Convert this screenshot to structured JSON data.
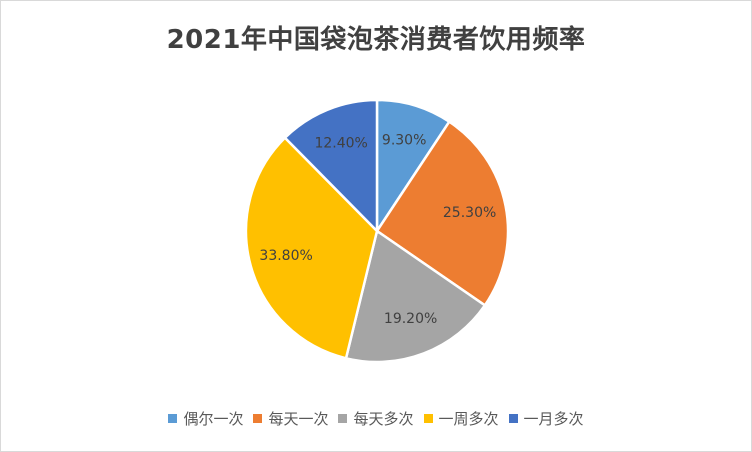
{
  "chart_data": {
    "type": "pie",
    "title": "2021年中国袋泡茶消费者饮用频率",
    "categories": [
      "偶尔一次",
      "每天一次",
      "每天多次",
      "一周多次",
      "一月多次"
    ],
    "values": [
      9.3,
      25.3,
      19.2,
      33.8,
      12.4
    ],
    "labels": [
      "9.30%",
      "25.30%",
      "19.20%",
      "33.80%",
      "12.40%"
    ],
    "colors": [
      "#5b9bd5",
      "#ed7d31",
      "#a5a5a5",
      "#ffc000",
      "#4472c4"
    ],
    "legend_position": "bottom"
  }
}
